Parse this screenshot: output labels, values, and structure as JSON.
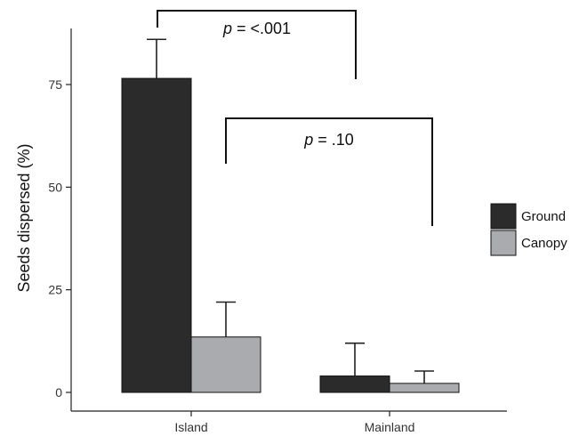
{
  "chart_data": {
    "type": "bar",
    "title": "",
    "xlabel": "",
    "ylabel": "Seeds dispersed (%)",
    "ylim": [
      0,
      90
    ],
    "yticks": [
      0,
      25,
      50,
      75
    ],
    "categories": [
      "Island",
      "Mainland"
    ],
    "series": [
      {
        "name": "Ground",
        "color": "#2b2b2b",
        "values": [
          76.5,
          4.0
        ],
        "errors": [
          9.5,
          8.0
        ]
      },
      {
        "name": "Canopy",
        "color": "#a9abae",
        "values": [
          13.5,
          2.2
        ],
        "errors": [
          8.5,
          3.0
        ]
      }
    ],
    "grid": false,
    "legend_position": "right",
    "annotations": [
      {
        "p_prefix": "p",
        "p_value": " = <.001"
      },
      {
        "p_prefix": "p",
        "p_value": " = .10"
      }
    ]
  }
}
